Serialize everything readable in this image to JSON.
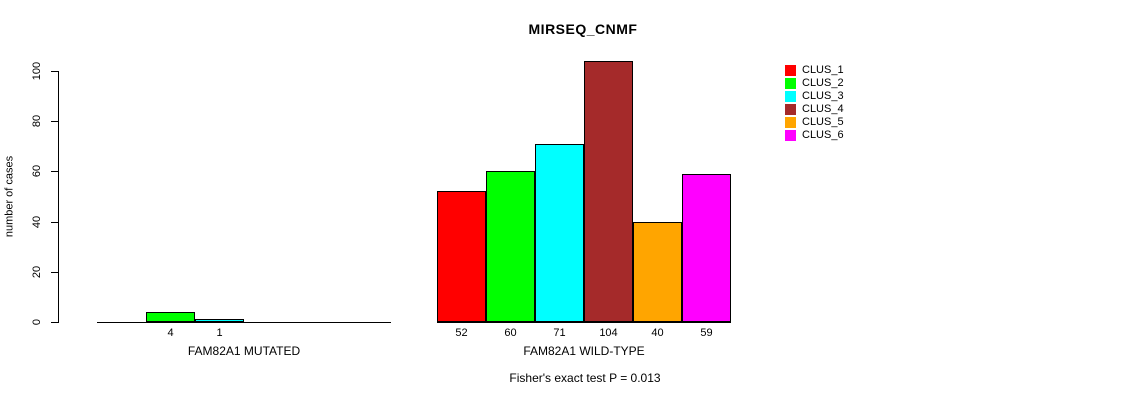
{
  "chart_data": {
    "type": "bar",
    "title": "MIRSEQ_CNMF",
    "ylabel": "number of cases",
    "annotation": "Fisher's exact test P = 0.013",
    "ylim": [
      0,
      100
    ],
    "yticks": [
      0,
      20,
      40,
      60,
      80,
      100
    ],
    "grid": false,
    "legend_position": "right",
    "series_names": [
      "CLUS_1",
      "CLUS_2",
      "CLUS_3",
      "CLUS_4",
      "CLUS_5",
      "CLUS_6"
    ],
    "series_colors": [
      "#FF0000",
      "#00FF00",
      "#00FFFF",
      "#A52A2A",
      "#FFA500",
      "#FF00FF"
    ],
    "groups": [
      {
        "label": "FAM82A1 MUTATED",
        "values": [
          0,
          4,
          1,
          0,
          0,
          0
        ],
        "bar_labels": [
          "",
          "4",
          "1",
          "",
          "",
          ""
        ]
      },
      {
        "label": "FAM82A1 WILD-TYPE",
        "values": [
          52,
          60,
          71,
          104,
          40,
          59
        ],
        "bar_labels": [
          "52",
          "60",
          "71",
          "104",
          "40",
          "59"
        ]
      }
    ]
  }
}
